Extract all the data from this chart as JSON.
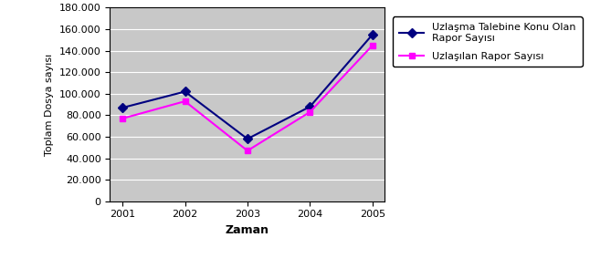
{
  "years": [
    2001,
    2002,
    2003,
    2004,
    2005
  ],
  "series1_values": [
    87000,
    102000,
    58000,
    88000,
    155000
  ],
  "series2_values": [
    77000,
    93000,
    47000,
    83000,
    145000
  ],
  "series1_label": "Uzlaşma Talebine Konu Olan\nRapor Sayısı",
  "series2_label": "Uzlaşılan Rapor Sayısı",
  "series1_color": "#000080",
  "series2_color": "#FF00FF",
  "xlabel": "Zaman",
  "ylabel": "Toplam Dosya sayısı",
  "ylim": [
    0,
    180000
  ],
  "ytick_step": 20000,
  "fig_bg_color": "#FFFFFF",
  "plot_bg_color": "#C8C8C8",
  "grid_color": "#FFFFFF",
  "marker1": "D",
  "marker2": "s"
}
